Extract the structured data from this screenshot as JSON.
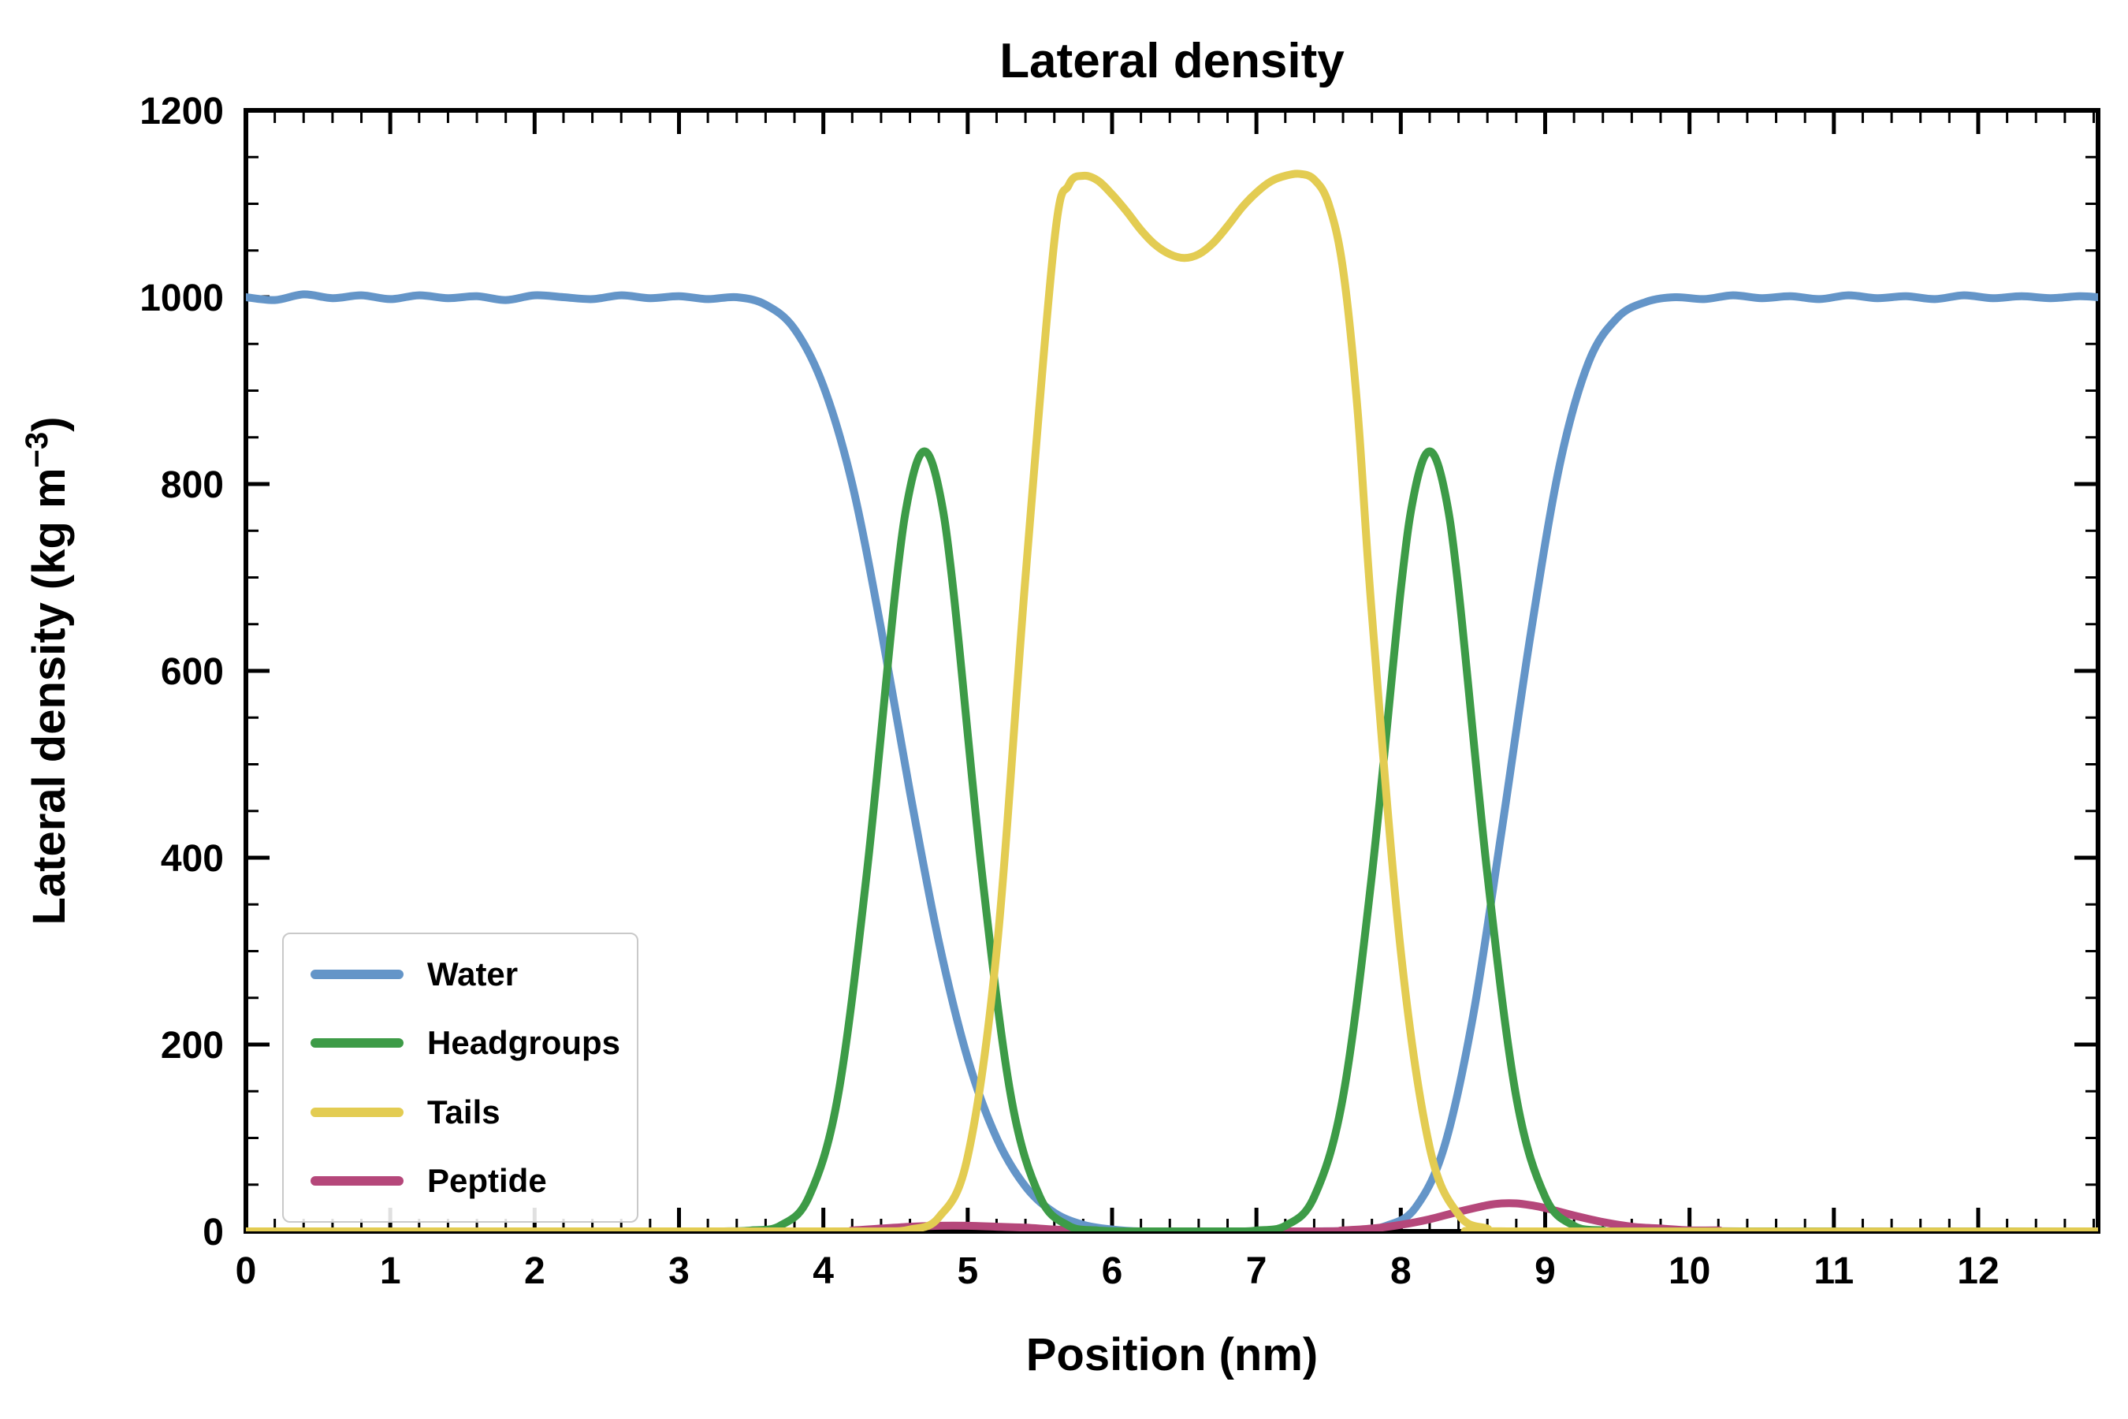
{
  "chart_data": {
    "type": "line",
    "title": "Lateral density",
    "xlabel": "Position (nm)",
    "ylabel": "Lateral density (kg m⁻³)",
    "ylabel_parts": {
      "pre": "Lateral density (kg m",
      "sup": "−3",
      "post": ")"
    },
    "xlim": [
      0,
      12.83
    ],
    "ylim": [
      0,
      1200
    ],
    "x_major_ticks": [
      0,
      1,
      2,
      3,
      4,
      5,
      6,
      7,
      8,
      9,
      10,
      11,
      12
    ],
    "x_minor_step": 0.2,
    "y_major_ticks": [
      0,
      200,
      400,
      600,
      800,
      1000,
      1200
    ],
    "y_minor_step": 50,
    "grid": false,
    "legend_position": "lower left",
    "axis_color": "#000000",
    "series": [
      {
        "name": "Water",
        "color": "#6495c8",
        "points": [
          [
            0,
            1000
          ],
          [
            0.2,
            997
          ],
          [
            0.4,
            1003
          ],
          [
            0.6,
            999
          ],
          [
            0.8,
            1002
          ],
          [
            1.0,
            998
          ],
          [
            1.2,
            1002
          ],
          [
            1.4,
            999
          ],
          [
            1.6,
            1001
          ],
          [
            1.8,
            997
          ],
          [
            2.0,
            1002
          ],
          [
            2.2,
            1000
          ],
          [
            2.4,
            998
          ],
          [
            2.6,
            1002
          ],
          [
            2.8,
            999
          ],
          [
            3.0,
            1001
          ],
          [
            3.2,
            998
          ],
          [
            3.4,
            1000
          ],
          [
            3.6,
            992
          ],
          [
            3.8,
            966
          ],
          [
            4.0,
            905
          ],
          [
            4.2,
            800
          ],
          [
            4.4,
            645
          ],
          [
            4.6,
            470
          ],
          [
            4.8,
            310
          ],
          [
            5.0,
            185
          ],
          [
            5.2,
            100
          ],
          [
            5.4,
            48
          ],
          [
            5.6,
            20
          ],
          [
            5.8,
            7
          ],
          [
            6.0,
            2
          ],
          [
            6.2,
            0
          ],
          [
            6.6,
            0
          ],
          [
            7.0,
            0
          ],
          [
            7.4,
            0
          ],
          [
            7.7,
            1
          ],
          [
            7.9,
            6
          ],
          [
            8.1,
            25
          ],
          [
            8.3,
            90
          ],
          [
            8.5,
            230
          ],
          [
            8.7,
            430
          ],
          [
            8.9,
            640
          ],
          [
            9.1,
            820
          ],
          [
            9.3,
            930
          ],
          [
            9.5,
            978
          ],
          [
            9.7,
            995
          ],
          [
            9.9,
            1000
          ],
          [
            10.1,
            998
          ],
          [
            10.3,
            1002
          ],
          [
            10.5,
            999
          ],
          [
            10.7,
            1001
          ],
          [
            10.9,
            998
          ],
          [
            11.1,
            1002
          ],
          [
            11.3,
            999
          ],
          [
            11.5,
            1001
          ],
          [
            11.7,
            998
          ],
          [
            11.9,
            1002
          ],
          [
            12.1,
            999
          ],
          [
            12.3,
            1001
          ],
          [
            12.5,
            999
          ],
          [
            12.7,
            1001
          ],
          [
            12.83,
            1000
          ]
        ]
      },
      {
        "name": "Headgroups",
        "color": "#3d9b47",
        "points": [
          [
            0,
            0
          ],
          [
            3.0,
            0
          ],
          [
            3.3,
            0
          ],
          [
            3.5,
            1
          ],
          [
            3.7,
            6
          ],
          [
            3.9,
            37
          ],
          [
            4.1,
            144
          ],
          [
            4.3,
            382
          ],
          [
            4.5,
            687
          ],
          [
            4.6,
            795
          ],
          [
            4.7,
            835
          ],
          [
            4.8,
            795
          ],
          [
            4.9,
            687
          ],
          [
            5.1,
            382
          ],
          [
            5.3,
            144
          ],
          [
            5.5,
            37
          ],
          [
            5.7,
            6
          ],
          [
            5.9,
            1
          ],
          [
            6.1,
            0
          ],
          [
            6.5,
            0
          ],
          [
            6.9,
            0
          ],
          [
            7.0,
            1
          ],
          [
            7.2,
            6
          ],
          [
            7.4,
            37
          ],
          [
            7.6,
            144
          ],
          [
            7.8,
            382
          ],
          [
            8.0,
            687
          ],
          [
            8.1,
            795
          ],
          [
            8.2,
            835
          ],
          [
            8.3,
            795
          ],
          [
            8.4,
            687
          ],
          [
            8.6,
            382
          ],
          [
            8.8,
            144
          ],
          [
            9.0,
            37
          ],
          [
            9.2,
            6
          ],
          [
            9.4,
            1
          ],
          [
            9.6,
            0
          ],
          [
            12.83,
            0
          ]
        ]
      },
      {
        "name": "Tails",
        "color": "#e3cc52",
        "points": [
          [
            0,
            0
          ],
          [
            4.0,
            0
          ],
          [
            4.4,
            0
          ],
          [
            4.6,
            2
          ],
          [
            4.8,
            15
          ],
          [
            5.0,
            80
          ],
          [
            5.2,
            300
          ],
          [
            5.4,
            700
          ],
          [
            5.6,
            1060
          ],
          [
            5.7,
            1120
          ],
          [
            5.8,
            1130
          ],
          [
            5.9,
            1125
          ],
          [
            6.0,
            1110
          ],
          [
            6.1,
            1092
          ],
          [
            6.2,
            1072
          ],
          [
            6.3,
            1056
          ],
          [
            6.4,
            1046
          ],
          [
            6.5,
            1042
          ],
          [
            6.6,
            1046
          ],
          [
            6.7,
            1058
          ],
          [
            6.8,
            1076
          ],
          [
            6.9,
            1096
          ],
          [
            7.0,
            1112
          ],
          [
            7.1,
            1124
          ],
          [
            7.2,
            1130
          ],
          [
            7.3,
            1132
          ],
          [
            7.4,
            1126
          ],
          [
            7.5,
            1100
          ],
          [
            7.6,
            1030
          ],
          [
            7.7,
            880
          ],
          [
            7.8,
            660
          ],
          [
            8.0,
            300
          ],
          [
            8.2,
            90
          ],
          [
            8.4,
            18
          ],
          [
            8.6,
            3
          ],
          [
            8.8,
            0
          ],
          [
            12.83,
            0
          ]
        ]
      },
      {
        "name": "Peptide",
        "color": "#b5477a",
        "points": [
          [
            0,
            0
          ],
          [
            4.0,
            0
          ],
          [
            4.2,
            1
          ],
          [
            4.4,
            3
          ],
          [
            4.6,
            5
          ],
          [
            4.8,
            6
          ],
          [
            5.0,
            6
          ],
          [
            5.2,
            5
          ],
          [
            5.4,
            4
          ],
          [
            5.6,
            2
          ],
          [
            5.8,
            1
          ],
          [
            6.0,
            0
          ],
          [
            7.4,
            0
          ],
          [
            7.6,
            1
          ],
          [
            7.8,
            3
          ],
          [
            8.0,
            7
          ],
          [
            8.2,
            13
          ],
          [
            8.4,
            21
          ],
          [
            8.6,
            28
          ],
          [
            8.7,
            30
          ],
          [
            8.8,
            30
          ],
          [
            8.9,
            28
          ],
          [
            9.0,
            25
          ],
          [
            9.2,
            17
          ],
          [
            9.4,
            10
          ],
          [
            9.6,
            5
          ],
          [
            9.8,
            3
          ],
          [
            10.0,
            1
          ],
          [
            10.2,
            1
          ],
          [
            10.4,
            0
          ],
          [
            12.83,
            0
          ]
        ]
      }
    ]
  }
}
